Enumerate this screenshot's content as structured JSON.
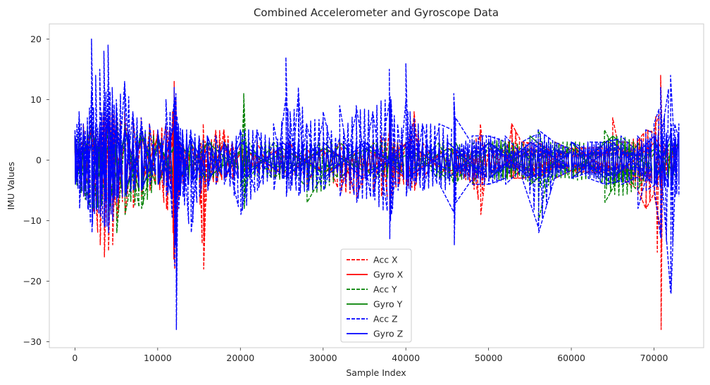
{
  "chart_data": {
    "type": "line",
    "title": "Combined Accelerometer and Gyroscope Data",
    "xlabel": "Sample Index",
    "ylabel": "IMU Values",
    "xlim": [
      -3100,
      76000
    ],
    "ylim": [
      -31,
      22.5
    ],
    "xticks": [
      0,
      10000,
      20000,
      30000,
      40000,
      50000,
      60000,
      70000
    ],
    "xtick_labels": [
      "0",
      "10000",
      "20000",
      "30000",
      "40000",
      "50000",
      "60000",
      "70000"
    ],
    "yticks": [
      20,
      10,
      0,
      -10,
      -20,
      -30
    ],
    "ytick_labels": [
      "20",
      "10",
      "0",
      "−10",
      "−20",
      "−30"
    ],
    "grid": false,
    "legend_position": "lower center",
    "series": [
      {
        "name": "Acc X",
        "color": "#ff0000",
        "style": "dashed",
        "x": [
          0,
          1000,
          2000,
          3000,
          3500,
          4000,
          4500,
          5000,
          6000,
          7000,
          8000,
          9000,
          10000,
          11000,
          11800,
          12000,
          12200,
          12500,
          13000,
          14000,
          15000,
          15500,
          16000,
          17000,
          18000,
          19000,
          20000,
          20500,
          21000,
          22000,
          24000,
          26000,
          28000,
          30000,
          32000,
          34000,
          36000,
          37000,
          38000,
          38200,
          39000,
          40000,
          41000,
          42000,
          44000,
          46000,
          47000,
          48000,
          49000,
          50000,
          52000,
          52800,
          54000,
          56000,
          58000,
          60000,
          62000,
          64000,
          65000,
          66000,
          68000,
          69000,
          70000,
          70800,
          71000,
          72000,
          73000
        ],
        "y": [
          4,
          6,
          7,
          5,
          9,
          6,
          9,
          8,
          8,
          7,
          7,
          6,
          5,
          6,
          8,
          13,
          10,
          4,
          3,
          3,
          4,
          6,
          3,
          5,
          5,
          3,
          3,
          2,
          2,
          3,
          2,
          3,
          2,
          2,
          3,
          2,
          3,
          4,
          6,
          4,
          3,
          3,
          8,
          3,
          2,
          2,
          2,
          2,
          6,
          3,
          3,
          6,
          3,
          3,
          3,
          2,
          2,
          3,
          7,
          3,
          3,
          5,
          5,
          14,
          3,
          3,
          3
        ],
        "y_min": [
          -4,
          -6,
          -8,
          -14,
          -16,
          -15,
          -14,
          -10,
          -9,
          -8,
          -6,
          -5,
          -4,
          -8,
          -12,
          -18,
          -16,
          -6,
          -4,
          -3,
          -4,
          -18,
          -4,
          -4,
          -3,
          -3,
          -3,
          -2,
          -2,
          -2,
          -3,
          -3,
          -4,
          -3,
          -5,
          -6,
          -5,
          -6,
          -9,
          -6,
          -4,
          -4,
          -5,
          -3,
          -3,
          -3,
          -3,
          -4,
          -9,
          -3,
          -3,
          -3,
          -3,
          -3,
          -3,
          -2,
          -2,
          -3,
          -4,
          -3,
          -5,
          -8,
          -6,
          -28,
          -3,
          -3,
          -3
        ]
      },
      {
        "name": "Gyro X",
        "color": "#ff0000",
        "style": "solid",
        "x": [
          0,
          2000,
          4000,
          6000,
          8000,
          10000,
          12000,
          14000,
          16000,
          18000,
          20000,
          25000,
          30000,
          35000,
          40000,
          45000,
          50000,
          55000,
          60000,
          65000,
          70000,
          73000
        ],
        "y": [
          3,
          5,
          6,
          5,
          4,
          4,
          5,
          3,
          3,
          3,
          2,
          2,
          2,
          2,
          3,
          2,
          2,
          2,
          2,
          3,
          4,
          3
        ],
        "y_min": [
          -3,
          -5,
          -6,
          -5,
          -4,
          -4,
          -6,
          -3,
          -3,
          -3,
          -2,
          -2,
          -2,
          -2,
          -3,
          -2,
          -2,
          -2,
          -2,
          -3,
          -4,
          -3
        ]
      },
      {
        "name": "Acc Y",
        "color": "#008000",
        "style": "dashed",
        "x": [
          0,
          2000,
          4000,
          5000,
          6000,
          8000,
          10000,
          12000,
          14000,
          16000,
          18000,
          20000,
          20400,
          21000,
          24000,
          28000,
          32000,
          36000,
          40000,
          44000,
          46000,
          48000,
          50000,
          52000,
          54000,
          56000,
          58000,
          60000,
          64000,
          68000,
          70000,
          72000,
          73000
        ],
        "y": [
          4,
          6,
          7,
          7,
          6,
          5,
          4,
          5,
          3,
          3,
          3,
          3,
          11,
          3,
          3,
          3,
          3,
          3,
          3,
          3,
          3,
          3,
          3,
          3,
          3,
          5,
          3,
          3,
          5,
          3,
          3,
          4,
          3
        ],
        "y_min": [
          -4,
          -8,
          -10,
          -12,
          -9,
          -8,
          -4,
          -6,
          -3,
          -3,
          -3,
          -3,
          -8,
          -3,
          -3,
          -7,
          -3,
          -3,
          -3,
          -3,
          -4,
          -4,
          -3,
          -3,
          -3,
          -10,
          -3,
          -3,
          -7,
          -5,
          -4,
          -4,
          -3
        ]
      },
      {
        "name": "Gyro Y",
        "color": "#008000",
        "style": "solid",
        "x": [
          0,
          2000,
          4000,
          6000,
          8000,
          10000,
          12000,
          16000,
          20000,
          25000,
          30000,
          35000,
          40000,
          45000,
          50000,
          55000,
          60000,
          65000,
          70000,
          73000
        ],
        "y": [
          3,
          5,
          6,
          5,
          4,
          3,
          4,
          3,
          2,
          2,
          2,
          2,
          2,
          2,
          3,
          4,
          2,
          4,
          3,
          3
        ],
        "y_min": [
          -3,
          -6,
          -8,
          -6,
          -5,
          -3,
          -4,
          -3,
          -2,
          -2,
          -2,
          -2,
          -2,
          -3,
          -3,
          -4,
          -2,
          -4,
          -3,
          -3
        ]
      },
      {
        "name": "Acc Z",
        "color": "#0000ff",
        "style": "dashed",
        "x": [
          0,
          500,
          1000,
          1500,
          2000,
          2500,
          3000,
          3500,
          4000,
          4500,
          5000,
          6000,
          7000,
          8000,
          9000,
          10000,
          11000,
          12000,
          12200,
          12500,
          13000,
          14000,
          15000,
          16000,
          17000,
          18000,
          20000,
          22000,
          24000,
          25500,
          26000,
          27000,
          28000,
          30000,
          32000,
          34000,
          36000,
          38000,
          38200,
          39000,
          40000,
          40500,
          41000,
          42000,
          44000,
          45800,
          46000,
          48000,
          50000,
          52000,
          54000,
          56000,
          58000,
          60000,
          62000,
          64000,
          66000,
          68000,
          69000,
          70000,
          70800,
          71000,
          72000,
          72500,
          73000
        ],
        "y": [
          5,
          8,
          6,
          7,
          20,
          14,
          15,
          18,
          19,
          12,
          10,
          13,
          8,
          7,
          6,
          5,
          10,
          12,
          11,
          6,
          5,
          5,
          4,
          4,
          4,
          3,
          5,
          5,
          6,
          17,
          8,
          12,
          6,
          8,
          9,
          9,
          8,
          15,
          10,
          6,
          16,
          8,
          7,
          6,
          6,
          11,
          7,
          4,
          4,
          4,
          3,
          5,
          3,
          3,
          3,
          3,
          4,
          4,
          5,
          6,
          12,
          5,
          14,
          6,
          6
        ],
        "y_min": [
          -4,
          -8,
          -6,
          -8,
          -12,
          -8,
          -9,
          -11,
          -12,
          -10,
          -7,
          -6,
          -5,
          -5,
          -4,
          -4,
          -6,
          -14,
          -28,
          -8,
          -6,
          -12,
          -6,
          -5,
          -4,
          -4,
          -9,
          -5,
          -5,
          -6,
          -5,
          -6,
          -5,
          -5,
          -6,
          -7,
          -6,
          -13,
          -9,
          -5,
          -6,
          -5,
          -4,
          -5,
          -4,
          -14,
          -7,
          -4,
          -4,
          -4,
          -3,
          -12,
          -3,
          -3,
          -3,
          -4,
          -4,
          -8,
          -5,
          -5,
          -13,
          -5,
          -22,
          -6,
          -6
        ]
      },
      {
        "name": "Gyro Z",
        "color": "#0000ff",
        "style": "solid",
        "x": [
          0,
          1000,
          2000,
          3000,
          4000,
          5000,
          6000,
          8000,
          10000,
          12000,
          14000,
          16000,
          18000,
          20000,
          25000,
          30000,
          35000,
          40000,
          45000,
          50000,
          55000,
          60000,
          65000,
          70000,
          72000,
          73000
        ],
        "y": [
          4,
          5,
          7,
          6,
          8,
          6,
          5,
          5,
          4,
          6,
          4,
          4,
          3,
          3,
          3,
          3,
          3,
          3,
          3,
          3,
          3,
          3,
          3,
          4,
          5,
          4
        ],
        "y_min": [
          -4,
          -5,
          -7,
          -7,
          -8,
          -6,
          -5,
          -5,
          -4,
          -7,
          -4,
          -4,
          -3,
          -3,
          -3,
          -3,
          -3,
          -3,
          -3,
          -3,
          -3,
          -3,
          -3,
          -4,
          -5,
          -4
        ]
      }
    ]
  }
}
